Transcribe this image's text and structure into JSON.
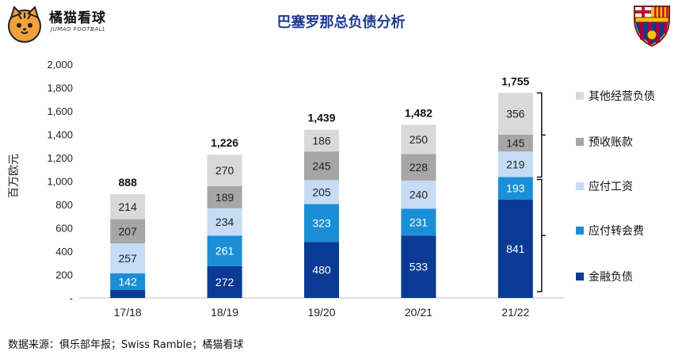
{
  "brand": {
    "name": "橘猫看球",
    "subtitle": "JUMAO FOOTBALL"
  },
  "source_note": "数据来源：俱乐部年报；Swiss Ramble；橘猫看球",
  "colors": {
    "title": "#1f3a93",
    "series": [
      "#0b3a94",
      "#1a8fd6",
      "#c5dcf4",
      "#a6a6a6",
      "#d9d9d9"
    ]
  },
  "chart_data": {
    "type": "bar",
    "stacked": true,
    "title": "巴塞罗那总负债分析",
    "ylabel": "百万欧元",
    "xlabel": "",
    "ylim": [
      0,
      2000
    ],
    "yticks": [
      0,
      200,
      400,
      600,
      800,
      1000,
      1200,
      1400,
      1600,
      1800,
      2000
    ],
    "ytick_labels": [
      "-",
      "200",
      "400",
      "600",
      "800",
      "1,000",
      "1,200",
      "1,400",
      "1,600",
      "1,800",
      "2,000"
    ],
    "categories": [
      "17/18",
      "18/19",
      "19/20",
      "20/21",
      "21/22"
    ],
    "series": [
      {
        "name": "金融负债",
        "values": [
          68,
          272,
          480,
          533,
          841
        ],
        "labels": [
          "",
          "272",
          "480",
          "533",
          "841"
        ]
      },
      {
        "name": "应付转会费",
        "values": [
          142,
          261,
          323,
          231,
          193
        ],
        "labels": [
          "142",
          "261",
          "323",
          "231",
          "193"
        ]
      },
      {
        "name": "应付工资",
        "values": [
          257,
          234,
          205,
          240,
          219
        ],
        "labels": [
          "257",
          "234",
          "205",
          "240",
          "219"
        ]
      },
      {
        "name": "预收账款",
        "values": [
          207,
          189,
          245,
          228,
          145
        ],
        "labels": [
          "207",
          "189",
          "245",
          "228",
          "145"
        ]
      },
      {
        "name": "其他经营负债",
        "values": [
          214,
          270,
          186,
          250,
          356
        ],
        "labels": [
          "214",
          "270",
          "186",
          "250",
          "356"
        ]
      }
    ],
    "totals": [
      "888",
      "1,226",
      "1,439",
      "1,482",
      "1,755"
    ],
    "legend": [
      "其他经营负债",
      "预收账款",
      "应付工资",
      "应付转会费",
      "金融负债"
    ],
    "legend_position": "right"
  }
}
